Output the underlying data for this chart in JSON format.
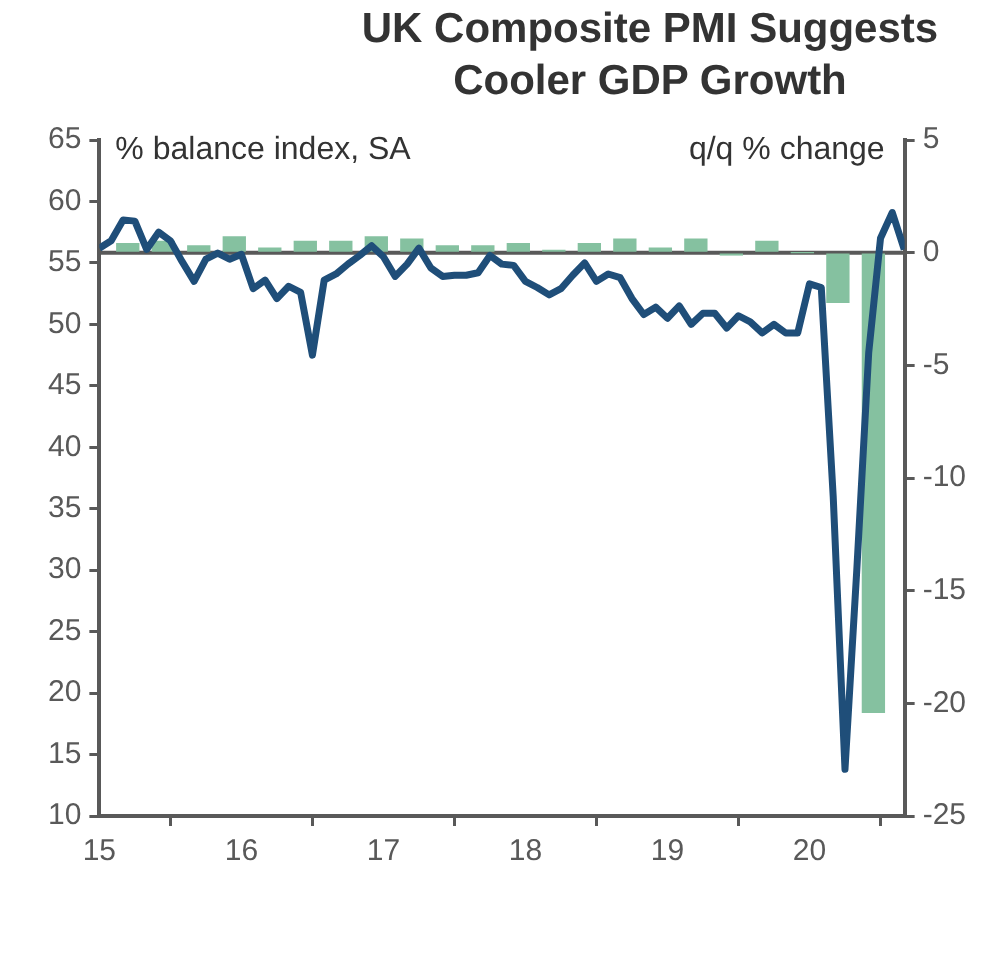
{
  "chart_data": {
    "type": "line",
    "title": "UK Composite PMI Suggests Cooler GDP Growth",
    "ylabel": "% balance index, SA",
    "y2label": "q/q % change",
    "xlim": [
      15,
      20.67
    ],
    "xticks": [
      15,
      16,
      17,
      18,
      19,
      20
    ],
    "ylim": [
      10,
      65
    ],
    "yticks": [
      10,
      15,
      20,
      25,
      30,
      35,
      40,
      45,
      50,
      55,
      60,
      65
    ],
    "y2lim": [
      -25,
      5
    ],
    "y2ticks": [
      -25,
      -20,
      -15,
      -10,
      -5,
      0,
      5
    ],
    "grid": false,
    "legend": false,
    "marker": "none",
    "line_style": "solid",
    "ref_lines": [
      {
        "axis": "y2",
        "value": 0,
        "color": "#595959"
      }
    ],
    "series": [
      {
        "type": "bar",
        "axis": "y2",
        "color": "#85c1a0",
        "x": [
          15.2,
          15.45,
          15.7,
          15.95,
          16.2,
          16.45,
          16.7,
          16.95,
          17.2,
          17.45,
          17.7,
          17.95,
          18.2,
          18.45,
          18.7,
          18.95,
          19.2,
          19.45,
          19.7,
          19.95,
          20.2,
          20.45
        ],
        "values": [
          0.4,
          0.5,
          0.3,
          0.7,
          0.2,
          0.5,
          0.5,
          0.7,
          0.6,
          0.3,
          0.3,
          0.4,
          0.1,
          0.4,
          0.6,
          0.2,
          0.6,
          -0.1,
          0.5,
          0.0,
          -2.2,
          -20.4
        ]
      },
      {
        "color": "#1f4e79",
        "x": [
          15,
          15.083,
          15.167,
          15.25,
          15.333,
          15.417,
          15.5,
          15.583,
          15.667,
          15.75,
          15.833,
          15.917,
          16,
          16.083,
          16.167,
          16.25,
          16.333,
          16.417,
          16.5,
          16.583,
          16.667,
          16.75,
          16.833,
          16.917,
          17,
          17.083,
          17.167,
          17.25,
          17.333,
          17.417,
          17.5,
          17.583,
          17.667,
          17.75,
          17.833,
          17.917,
          18,
          18.083,
          18.167,
          18.25,
          18.333,
          18.417,
          18.5,
          18.583,
          18.667,
          18.75,
          18.833,
          18.917,
          19,
          19.083,
          19.167,
          19.25,
          19.333,
          19.417,
          19.5,
          19.583,
          19.667,
          19.75,
          19.833,
          19.917,
          20,
          20.083,
          20.167,
          20.25,
          20.333,
          20.417,
          20.5,
          20.583,
          20.667
        ],
        "values": [
          56.2,
          56.8,
          58.5,
          58.4,
          56.1,
          57.5,
          56.8,
          55.1,
          53.5,
          55.3,
          55.8,
          55.3,
          55.7,
          52.9,
          53.6,
          52.1,
          53.1,
          52.6,
          47.5,
          53.6,
          54.1,
          54.9,
          55.6,
          56.4,
          55.5,
          53.9,
          54.9,
          56.2,
          54.6,
          53.9,
          54.0,
          54.0,
          54.2,
          55.6,
          54.9,
          54.8,
          53.5,
          53.0,
          52.4,
          52.9,
          54.0,
          55.0,
          53.5,
          54.1,
          53.8,
          52.1,
          50.8,
          51.4,
          50.5,
          51.5,
          50.0,
          50.9,
          50.9,
          49.7,
          50.7,
          50.2,
          49.3,
          50.0,
          49.3,
          49.3,
          53.3,
          53.0,
          36.0,
          13.8,
          30.0,
          47.7,
          57.0,
          59.1,
          56.1
        ]
      }
    ]
  }
}
